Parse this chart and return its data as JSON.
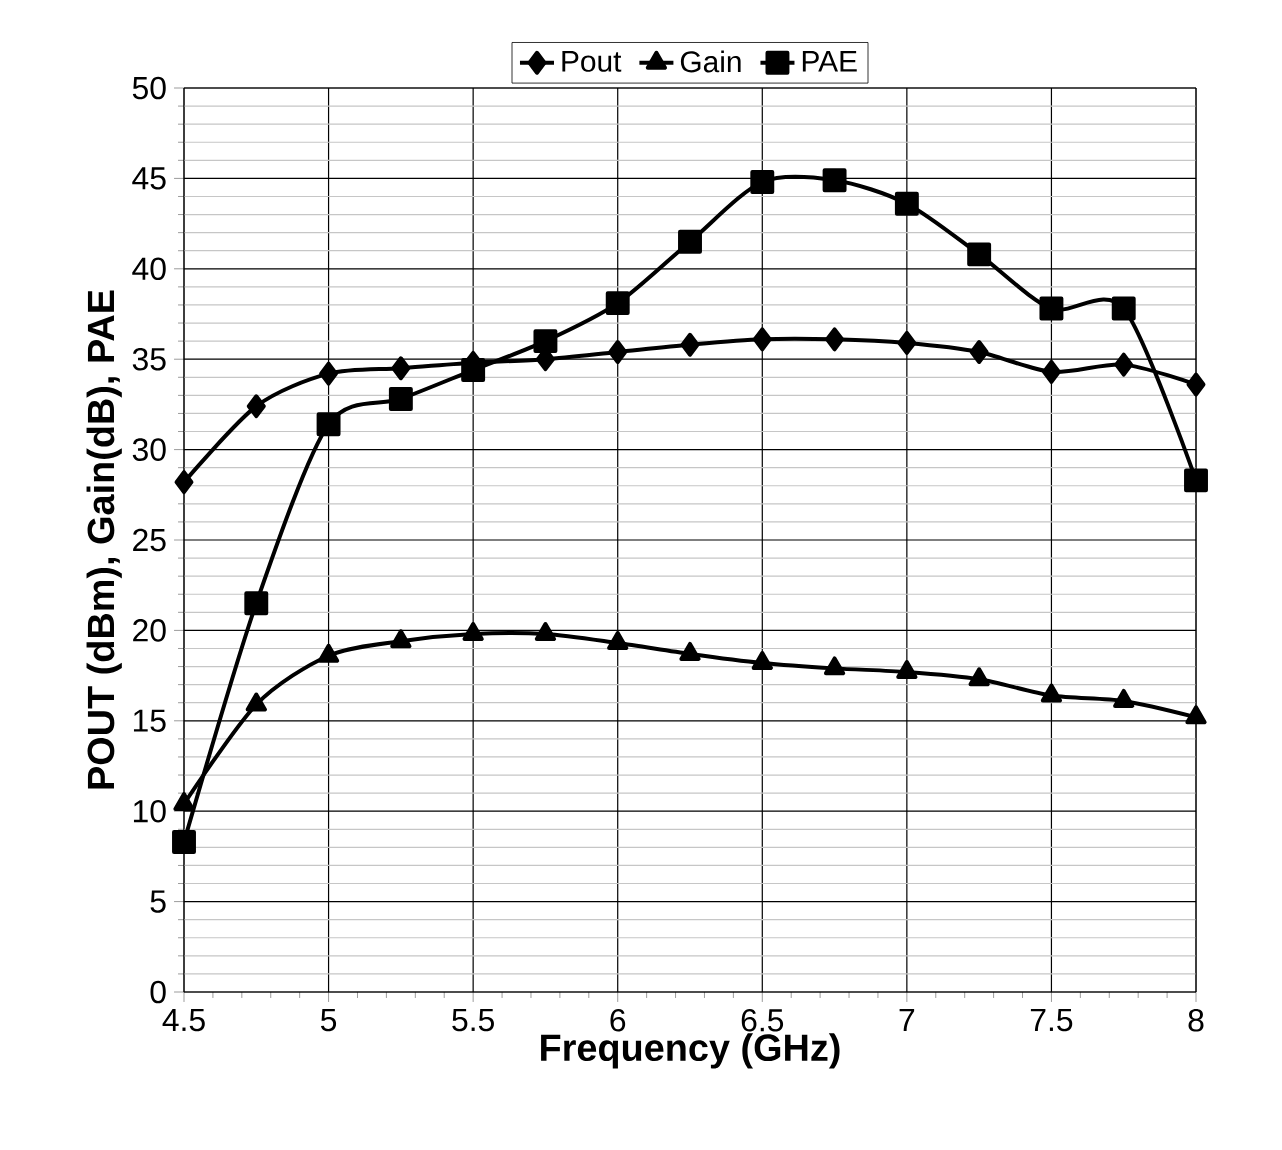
{
  "chart_data": {
    "type": "line",
    "xlabel": "Frequency (GHz)",
    "ylabel": "POUT (dBm), Gain(dB), PAE",
    "x": [
      4.5,
      4.75,
      5,
      5.25,
      5.5,
      5.75,
      6,
      6.25,
      6.5,
      6.75,
      7,
      7.25,
      7.5,
      7.75,
      8
    ],
    "series": [
      {
        "name": "Pout",
        "color": "#000000",
        "marker": "diamond",
        "values": [
          28.2,
          32.4,
          34.2,
          34.5,
          34.8,
          35.0,
          35.4,
          35.8,
          36.1,
          36.1,
          35.9,
          35.4,
          34.3,
          34.7,
          33.6
        ]
      },
      {
        "name": "Gain",
        "color": "#000000",
        "marker": "triangle",
        "values": [
          10.4,
          15.9,
          18.6,
          19.4,
          19.8,
          19.8,
          19.3,
          18.7,
          18.2,
          17.9,
          17.7,
          17.3,
          16.4,
          16.1,
          15.2
        ]
      },
      {
        "name": "PAE",
        "color": "#000000",
        "marker": "square",
        "values": [
          8.3,
          21.5,
          31.4,
          32.8,
          34.4,
          36.0,
          38.1,
          41.5,
          44.8,
          44.9,
          43.6,
          40.8,
          37.8,
          37.8,
          28.3
        ]
      }
    ],
    "xlim": [
      4.5,
      8
    ],
    "xticks": [
      4.5,
      5,
      5.5,
      6,
      6.5,
      7,
      7.5,
      8
    ],
    "ylim": [
      0,
      50
    ],
    "yticks": [
      0,
      5,
      10,
      15,
      20,
      25,
      30,
      35,
      40,
      45,
      50
    ],
    "grid": true,
    "legend": "top",
    "line_style": "solid"
  }
}
